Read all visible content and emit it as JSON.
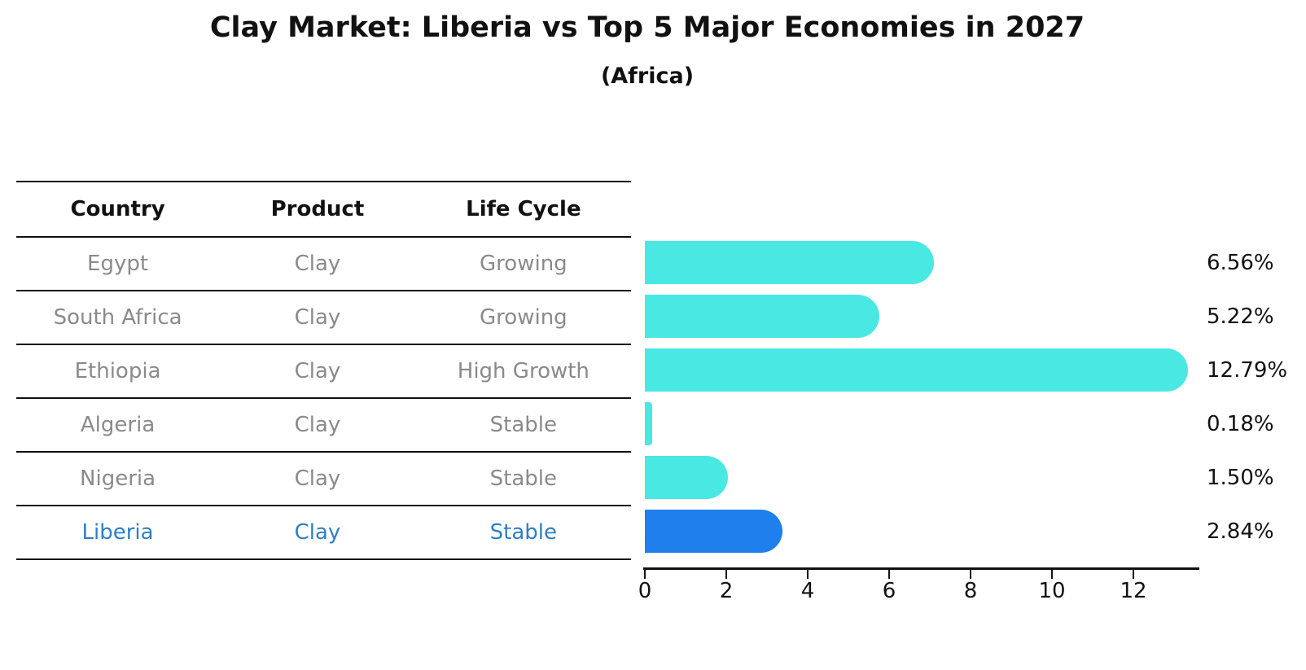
{
  "page": {
    "title": "Clay Market: Liberia vs Top 5 Major Economies in 2027",
    "subtitle": "(Africa)"
  },
  "table": {
    "headers": [
      "Country",
      "Product",
      "Life Cycle"
    ],
    "rows": [
      {
        "country": "Egypt",
        "product": "Clay",
        "life_cycle": "Growing",
        "highlighted": false
      },
      {
        "country": "South Africa",
        "product": "Clay",
        "life_cycle": "Growing",
        "highlighted": false
      },
      {
        "country": "Ethiopia",
        "product": "Clay",
        "life_cycle": "High Growth",
        "highlighted": false
      },
      {
        "country": "Algeria",
        "product": "Clay",
        "life_cycle": "Stable",
        "highlighted": false
      },
      {
        "country": "Nigeria",
        "product": "Clay",
        "life_cycle": "Stable",
        "highlighted": false
      },
      {
        "country": "Liberia",
        "product": "Clay",
        "life_cycle": "Stable",
        "highlighted": true
      }
    ]
  },
  "chart_data": {
    "type": "bar",
    "orientation": "horizontal",
    "title": "Clay Market: Liberia vs Top 5 Major Economies in 2027",
    "subtitle": "(Africa)",
    "categories": [
      "Egypt",
      "South Africa",
      "Ethiopia",
      "Algeria",
      "Nigeria",
      "Liberia"
    ],
    "values": [
      6.56,
      5.22,
      12.79,
      0.18,
      1.5,
      2.84
    ],
    "value_labels": [
      "6.56%",
      "5.22%",
      "12.79%",
      "0.18%",
      "1.50%",
      "2.84%"
    ],
    "x_ticks": [
      "0",
      "2",
      "4",
      "6",
      "8",
      "10",
      "12"
    ],
    "xlim": [
      0,
      13.6
    ],
    "xlabel": "",
    "ylabel": "",
    "grid": false,
    "legend": false,
    "bar_color": "#4AE8E3",
    "highlight_color": "#1F7FEC",
    "highlight_index": 5,
    "highlight_edge_style": "dotted"
  },
  "colors": {
    "text": "#111111",
    "muted_text": "#8a8a8a",
    "highlight_text": "#2F7FC6",
    "background": "#ffffff"
  }
}
